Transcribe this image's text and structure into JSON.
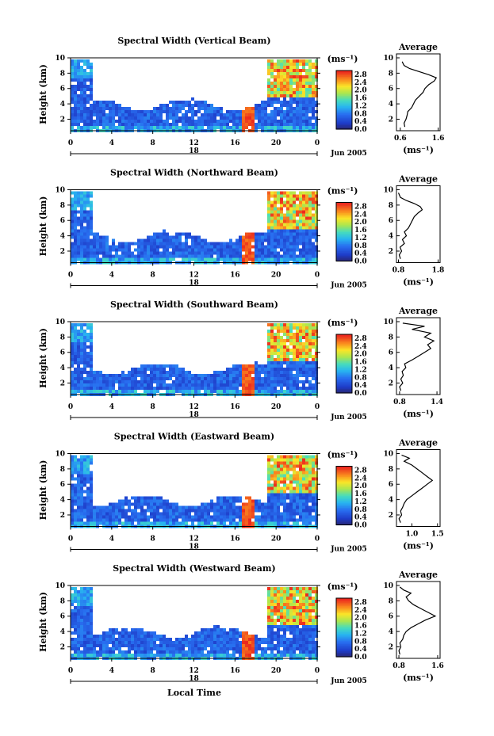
{
  "figure": {
    "xlabel": "Local Time",
    "colorbar_unit": "(ms⁻¹)",
    "avg_title": "Average",
    "avg_xlabel": "(ms⁻¹)"
  },
  "chart_data": [
    {
      "type": "heatmap",
      "title": "Spectral Width (Vertical Beam)",
      "ylabel": "Height (km)",
      "xlabel": "",
      "x_ticks": [
        "0",
        "4",
        "8",
        "12",
        "16",
        "20",
        "0"
      ],
      "y_ticks": [
        "2",
        "4",
        "6",
        "8",
        "10"
      ],
      "xlim": [
        0,
        24
      ],
      "ylim": [
        0.5,
        10
      ],
      "date_label": "18",
      "month_label": "Jun 2005",
      "colorbar_ticks": [
        "0.0",
        "0.4",
        "0.8",
        "1.2",
        "1.6",
        "2.0",
        "2.4",
        "2.8"
      ],
      "colorbar_range": [
        0,
        3.0
      ],
      "average": {
        "type": "line",
        "title": "Average",
        "xlabel": "(ms⁻¹)",
        "x_ticks": [
          "0.6",
          "1.6"
        ],
        "xlim": [
          0.5,
          1.65
        ],
        "y_ticks": [
          "2",
          "4",
          "6",
          "8",
          "10"
        ],
        "profile": [
          [
            0.72,
            1.0
          ],
          [
            0.7,
            1.5
          ],
          [
            0.75,
            2.0
          ],
          [
            0.78,
            2.5
          ],
          [
            0.8,
            3.0
          ],
          [
            0.9,
            3.5
          ],
          [
            0.95,
            4.0
          ],
          [
            1.0,
            4.5
          ],
          [
            1.1,
            5.0
          ],
          [
            1.2,
            5.5
          ],
          [
            1.25,
            6.0
          ],
          [
            1.35,
            6.5
          ],
          [
            1.5,
            7.0
          ],
          [
            1.55,
            7.4
          ],
          [
            1.35,
            7.8
          ],
          [
            1.1,
            8.2
          ],
          [
            0.85,
            8.6
          ],
          [
            0.7,
            9.0
          ],
          [
            0.65,
            9.5
          ]
        ]
      }
    },
    {
      "type": "heatmap",
      "title": "Spectral Width (Northward Beam)",
      "ylabel": "Height (km)",
      "xlabel": "",
      "x_ticks": [
        "0",
        "4",
        "8",
        "12",
        "16",
        "20",
        "0"
      ],
      "y_ticks": [
        "2",
        "4",
        "6",
        "8",
        "10"
      ],
      "xlim": [
        0,
        24
      ],
      "ylim": [
        0.5,
        10
      ],
      "date_label": "18",
      "month_label": "Jun 2005",
      "colorbar_ticks": [
        "0.0",
        "0.4",
        "0.8",
        "1.2",
        "1.6",
        "2.0",
        "2.4",
        "2.8"
      ],
      "colorbar_range": [
        0,
        3.0
      ],
      "average": {
        "type": "line",
        "title": "Average",
        "xlabel": "(ms⁻¹)",
        "x_ticks": [
          "0.8",
          "1.8"
        ],
        "xlim": [
          0.75,
          1.85
        ],
        "y_ticks": [
          "2",
          "4",
          "6",
          "8",
          "10"
        ],
        "profile": [
          [
            0.85,
            1.0
          ],
          [
            0.82,
            1.5
          ],
          [
            0.88,
            2.0
          ],
          [
            0.84,
            2.5
          ],
          [
            0.95,
            3.0
          ],
          [
            0.9,
            3.5
          ],
          [
            1.0,
            4.0
          ],
          [
            0.95,
            4.5
          ],
          [
            1.05,
            5.0
          ],
          [
            1.1,
            5.5
          ],
          [
            1.15,
            6.0
          ],
          [
            1.2,
            6.5
          ],
          [
            1.3,
            7.0
          ],
          [
            1.4,
            7.4
          ],
          [
            1.35,
            7.8
          ],
          [
            1.2,
            8.2
          ],
          [
            1.0,
            8.6
          ],
          [
            0.85,
            9.0
          ],
          [
            0.8,
            9.6
          ]
        ]
      }
    },
    {
      "type": "heatmap",
      "title": "Spectral Width (Southward Beam)",
      "ylabel": "Height (km)",
      "xlabel": "",
      "x_ticks": [
        "0",
        "4",
        "8",
        "12",
        "16",
        "20",
        "0"
      ],
      "y_ticks": [
        "2",
        "4",
        "6",
        "8",
        "10"
      ],
      "xlim": [
        0,
        24
      ],
      "ylim": [
        0.5,
        10
      ],
      "date_label": "18",
      "month_label": "Jun 2005",
      "colorbar_ticks": [
        "0.0",
        "0.4",
        "0.8",
        "1.2",
        "1.6",
        "2.0",
        "2.4",
        "2.8"
      ],
      "colorbar_range": [
        0,
        3.0
      ],
      "average": {
        "type": "line",
        "title": "Average",
        "xlabel": "(ms⁻¹)",
        "x_ticks": [
          "0.8",
          "1.4"
        ],
        "xlim": [
          0.75,
          1.45
        ],
        "y_ticks": [
          "2",
          "4",
          "6",
          "8",
          "10"
        ],
        "profile": [
          [
            0.82,
            1.0
          ],
          [
            0.8,
            1.5
          ],
          [
            0.85,
            2.0
          ],
          [
            0.82,
            2.5
          ],
          [
            0.86,
            3.0
          ],
          [
            0.84,
            3.5
          ],
          [
            0.9,
            4.0
          ],
          [
            0.88,
            4.5
          ],
          [
            1.0,
            5.0
          ],
          [
            1.1,
            5.5
          ],
          [
            1.2,
            6.0
          ],
          [
            1.3,
            6.5
          ],
          [
            1.25,
            7.0
          ],
          [
            1.35,
            7.5
          ],
          [
            1.2,
            8.0
          ],
          [
            1.3,
            8.5
          ],
          [
            1.0,
            9.0
          ],
          [
            1.2,
            9.4
          ],
          [
            0.85,
            9.8
          ]
        ]
      }
    },
    {
      "type": "heatmap",
      "title": "Spectral Width (Eastward Beam)",
      "ylabel": "Height (km)",
      "xlabel": "",
      "x_ticks": [
        "0",
        "4",
        "8",
        "12",
        "16",
        "20",
        "0"
      ],
      "y_ticks": [
        "2",
        "4",
        "6",
        "8",
        "10"
      ],
      "xlim": [
        0,
        24
      ],
      "ylim": [
        0.5,
        10
      ],
      "date_label": "18",
      "month_label": "Jun 2005",
      "colorbar_ticks": [
        "0.0",
        "0.4",
        "0.8",
        "1.2",
        "1.6",
        "2.0",
        "2.4",
        "2.8"
      ],
      "colorbar_range": [
        0,
        3.0
      ],
      "average": {
        "type": "line",
        "title": "Average",
        "xlabel": "(ms⁻¹)",
        "x_ticks": [
          "1.0",
          "1.5"
        ],
        "xlim": [
          0.7,
          1.55
        ],
        "y_ticks": [
          "2",
          "4",
          "6",
          "8",
          "10"
        ],
        "profile": [
          [
            0.78,
            1.0
          ],
          [
            0.75,
            1.5
          ],
          [
            0.8,
            2.0
          ],
          [
            0.78,
            2.5
          ],
          [
            0.82,
            3.0
          ],
          [
            0.85,
            3.5
          ],
          [
            0.9,
            4.0
          ],
          [
            1.0,
            4.5
          ],
          [
            1.1,
            5.0
          ],
          [
            1.2,
            5.5
          ],
          [
            1.3,
            6.0
          ],
          [
            1.4,
            6.5
          ],
          [
            1.3,
            7.0
          ],
          [
            1.2,
            7.5
          ],
          [
            1.1,
            8.0
          ],
          [
            1.0,
            8.5
          ],
          [
            0.85,
            9.0
          ],
          [
            0.95,
            9.4
          ],
          [
            0.8,
            9.8
          ]
        ]
      }
    },
    {
      "type": "heatmap",
      "title": "Spectral Width (Westward Beam)",
      "ylabel": "Height (km)",
      "xlabel": "",
      "x_ticks": [
        "0",
        "4",
        "8",
        "12",
        "16",
        "20",
        "0"
      ],
      "y_ticks": [
        "2",
        "4",
        "6",
        "8",
        "10"
      ],
      "xlim": [
        0,
        24
      ],
      "ylim": [
        0.5,
        10
      ],
      "date_label": "18",
      "month_label": "Jun 2005",
      "colorbar_ticks": [
        "0.0",
        "0.4",
        "0.8",
        "1.2",
        "1.6",
        "2.0",
        "2.4",
        "2.8"
      ],
      "colorbar_range": [
        0,
        3.0
      ],
      "average": {
        "type": "line",
        "title": "Average",
        "xlabel": "(ms⁻¹)",
        "x_ticks": [
          "0.8",
          "1.6"
        ],
        "xlim": [
          0.75,
          1.65
        ],
        "y_ticks": [
          "2",
          "4",
          "6",
          "8",
          "10"
        ],
        "profile": [
          [
            0.82,
            1.0
          ],
          [
            0.8,
            1.5
          ],
          [
            0.84,
            2.0
          ],
          [
            0.82,
            2.5
          ],
          [
            0.88,
            3.0
          ],
          [
            0.9,
            3.5
          ],
          [
            0.95,
            4.0
          ],
          [
            1.05,
            4.5
          ],
          [
            1.2,
            5.0
          ],
          [
            1.35,
            5.5
          ],
          [
            1.55,
            6.0
          ],
          [
            1.4,
            6.5
          ],
          [
            1.25,
            7.0
          ],
          [
            1.1,
            7.5
          ],
          [
            1.0,
            8.0
          ],
          [
            0.95,
            8.5
          ],
          [
            1.05,
            9.0
          ],
          [
            0.9,
            9.4
          ],
          [
            0.82,
            9.8
          ]
        ]
      }
    }
  ]
}
